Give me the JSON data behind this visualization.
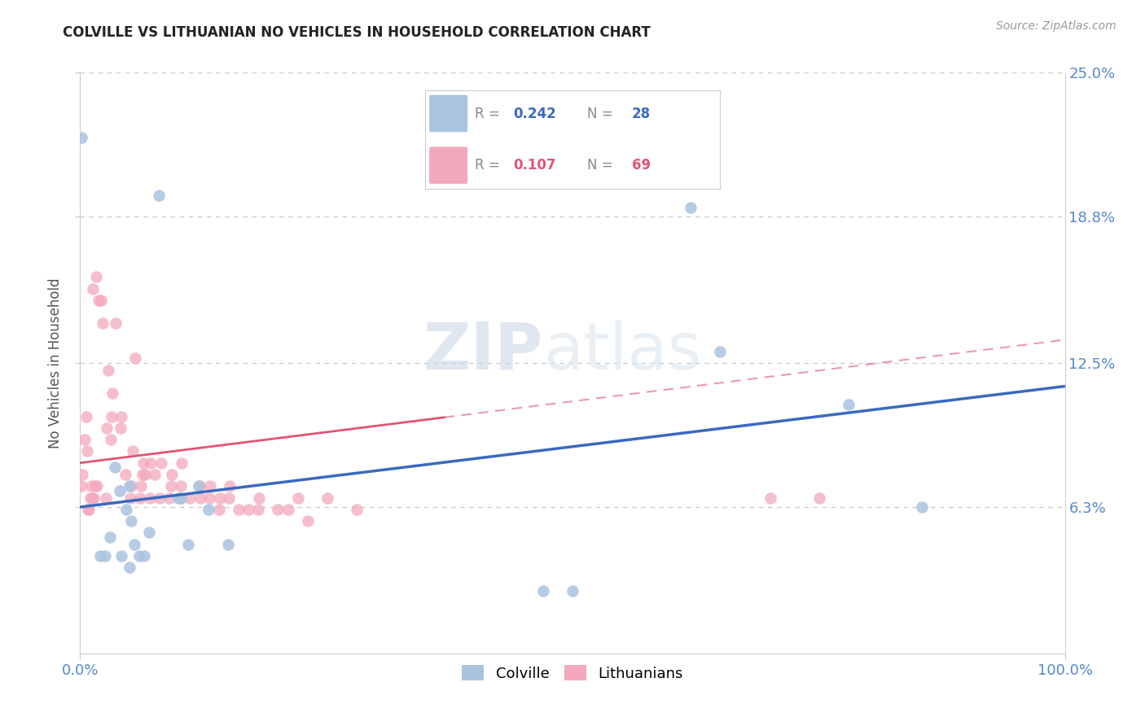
{
  "title": "COLVILLE VS LITHUANIAN NO VEHICLES IN HOUSEHOLD CORRELATION CHART",
  "source": "Source: ZipAtlas.com",
  "ylabel": "No Vehicles in Household",
  "xlim": [
    0,
    1
  ],
  "ylim": [
    0,
    0.25
  ],
  "yticks": [
    0.063,
    0.125,
    0.188,
    0.25
  ],
  "ytick_labels": [
    "6.3%",
    "12.5%",
    "18.8%",
    "25.0%"
  ],
  "xticks": [
    0.0,
    1.0
  ],
  "xtick_labels": [
    "0.0%",
    "100.0%"
  ],
  "colville_R": 0.242,
  "colville_N": 28,
  "lithuanian_R": 0.107,
  "lithuanian_N": 69,
  "colville_color": "#aac4e0",
  "lithuanian_color": "#f4a8bc",
  "colville_line_color": "#3a6abf",
  "lithuanian_line_color": "#e05575",
  "watermark_zip": "ZIP",
  "watermark_atlas": "atlas",
  "background_color": "#ffffff",
  "grid_color": "#cccccc",
  "colville_x": [
    0.001,
    0.02,
    0.025,
    0.03,
    0.035,
    0.04,
    0.042,
    0.047,
    0.05,
    0.05,
    0.052,
    0.055,
    0.06,
    0.065,
    0.07,
    0.08,
    0.1,
    0.102,
    0.11,
    0.12,
    0.13,
    0.15,
    0.47,
    0.5,
    0.62,
    0.65,
    0.78,
    0.855
  ],
  "colville_y": [
    0.222,
    0.042,
    0.042,
    0.05,
    0.08,
    0.07,
    0.042,
    0.062,
    0.037,
    0.072,
    0.057,
    0.047,
    0.042,
    0.042,
    0.052,
    0.197,
    0.067,
    0.067,
    0.047,
    0.072,
    0.062,
    0.047,
    0.027,
    0.027,
    0.192,
    0.13,
    0.107,
    0.063
  ],
  "lithuanian_x": [
    0.001,
    0.002,
    0.005,
    0.006,
    0.007,
    0.008,
    0.009,
    0.01,
    0.011,
    0.012,
    0.013,
    0.014,
    0.015,
    0.016,
    0.017,
    0.019,
    0.021,
    0.023,
    0.026,
    0.027,
    0.029,
    0.031,
    0.032,
    0.033,
    0.036,
    0.041,
    0.042,
    0.046,
    0.051,
    0.052,
    0.053,
    0.056,
    0.061,
    0.062,
    0.063,
    0.064,
    0.066,
    0.071,
    0.072,
    0.076,
    0.081,
    0.082,
    0.091,
    0.092,
    0.093,
    0.101,
    0.102,
    0.103,
    0.111,
    0.121,
    0.122,
    0.131,
    0.132,
    0.141,
    0.142,
    0.151,
    0.152,
    0.161,
    0.171,
    0.181,
    0.182,
    0.201,
    0.211,
    0.221,
    0.231,
    0.251,
    0.281,
    0.701,
    0.751
  ],
  "lithuanian_y": [
    0.072,
    0.077,
    0.092,
    0.102,
    0.087,
    0.062,
    0.062,
    0.067,
    0.072,
    0.067,
    0.157,
    0.067,
    0.072,
    0.162,
    0.072,
    0.152,
    0.152,
    0.142,
    0.067,
    0.097,
    0.122,
    0.092,
    0.102,
    0.112,
    0.142,
    0.097,
    0.102,
    0.077,
    0.067,
    0.072,
    0.087,
    0.127,
    0.067,
    0.072,
    0.077,
    0.082,
    0.077,
    0.067,
    0.082,
    0.077,
    0.067,
    0.082,
    0.067,
    0.072,
    0.077,
    0.067,
    0.072,
    0.082,
    0.067,
    0.072,
    0.067,
    0.067,
    0.072,
    0.062,
    0.067,
    0.067,
    0.072,
    0.062,
    0.062,
    0.062,
    0.067,
    0.062,
    0.062,
    0.067,
    0.057,
    0.067,
    0.062,
    0.067,
    0.067
  ]
}
